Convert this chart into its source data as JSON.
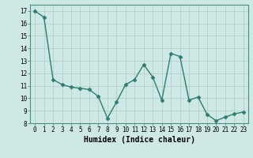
{
  "x": [
    0,
    1,
    2,
    3,
    4,
    5,
    6,
    7,
    8,
    9,
    10,
    11,
    12,
    13,
    14,
    15,
    16,
    17,
    18,
    19,
    20,
    21,
    22,
    23
  ],
  "y": [
    17.0,
    16.5,
    11.5,
    11.1,
    10.9,
    10.8,
    10.7,
    10.15,
    8.4,
    9.7,
    11.1,
    11.5,
    12.7,
    11.7,
    9.85,
    13.6,
    13.35,
    9.85,
    10.1,
    8.7,
    8.2,
    8.5,
    8.75,
    8.9
  ],
  "line_color": "#2e7d6e",
  "marker": "D",
  "marker_size": 2.5,
  "xlabel": "Humidex (Indice chaleur)",
  "xlim": [
    -0.5,
    23.5
  ],
  "ylim": [
    8,
    17.5
  ],
  "yticks": [
    8,
    9,
    10,
    11,
    12,
    13,
    14,
    15,
    16,
    17
  ],
  "xticks": [
    0,
    1,
    2,
    3,
    4,
    5,
    6,
    7,
    8,
    9,
    10,
    11,
    12,
    13,
    14,
    15,
    16,
    17,
    18,
    19,
    20,
    21,
    22,
    23
  ],
  "background_color": "#cde8e5",
  "grid_color": "#b0ccc8",
  "tick_fontsize": 5.5,
  "xlabel_fontsize": 7,
  "line_width": 1.0
}
